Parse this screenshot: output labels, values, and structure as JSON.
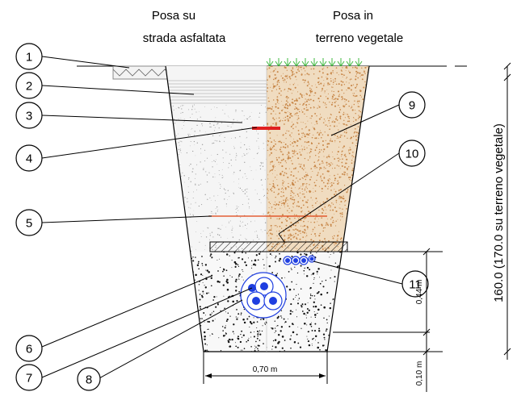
{
  "headers": {
    "asphalt_line1": "Posa su",
    "asphalt_line2": "strada asfaltata",
    "soil_line1": "Posa in",
    "soil_line2": "terreno vegetale"
  },
  "callouts": [
    "1",
    "2",
    "3",
    "4",
    "5",
    "6",
    "7",
    "8",
    "9",
    "10",
    "11"
  ],
  "dimensions": {
    "bottom_width": "0,70 m",
    "bed_height": "0,44 m",
    "bottom_depth": "0,10 m",
    "total_depth": "160.0 (170.0 su terreno vegetale)"
  },
  "colors": {
    "asphalt_fill": "#f3f3f3",
    "soil": "#c8884a",
    "soil_light": "#f0dcc0",
    "grass": "#3fb83f",
    "warning_tape": "#e02020",
    "net_line": "#e04010",
    "cable": "#1f3fe0",
    "concrete": "#f8f8f8"
  }
}
